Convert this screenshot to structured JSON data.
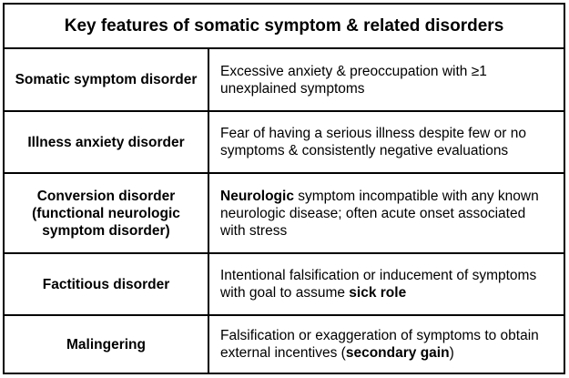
{
  "title": "Key features of somatic symptom & related disorders",
  "rows": [
    {
      "term": "Somatic symptom disorder",
      "desc_pre": "Excessive anxiety & preoccupation with ≥1 unexplained symptoms",
      "desc_bold": "",
      "desc_post": ""
    },
    {
      "term": "Illness anxiety disorder",
      "desc_pre": "Fear of having a serious illness despite few or no symptoms & consistently negative evaluations",
      "desc_bold": "",
      "desc_post": ""
    },
    {
      "term": "Conversion disorder (functional neurologic symptom disorder)",
      "desc_pre": "",
      "desc_bold": "Neurologic",
      "desc_post": " symptom incompatible with any known neurologic disease; often acute onset associated with stress"
    },
    {
      "term": "Factitious disorder",
      "desc_pre": "Intentional falsification or inducement of symptoms with goal to assume ",
      "desc_bold": "sick role",
      "desc_post": ""
    },
    {
      "term": "Malingering",
      "desc_pre": "Falsification or exaggeration of symptoms to obtain external incentives (",
      "desc_bold": "secondary gain",
      "desc_post": ")"
    }
  ]
}
